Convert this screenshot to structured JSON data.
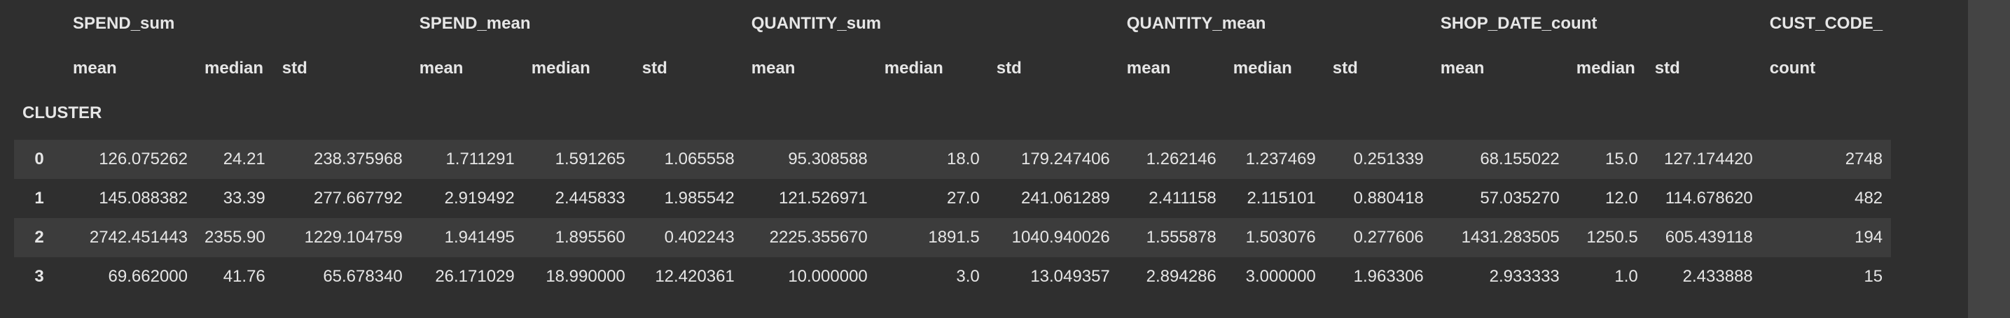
{
  "dataframe": {
    "top_headers": [
      "SPEND_sum",
      "SPEND_mean",
      "QUANTITY_sum",
      "QUANTITY_mean",
      "SHOP_DATE_count",
      "CUST_CODE_"
    ],
    "stat_headers": [
      "mean",
      "median",
      "std",
      "mean",
      "median",
      "std",
      "mean",
      "median",
      "std",
      "mean",
      "median",
      "std",
      "mean",
      "median",
      "std",
      "count"
    ],
    "index_name": "CLUSTER",
    "rows": [
      {
        "index": "0",
        "values": [
          "126.075262",
          "24.21",
          "238.375968",
          "1.711291",
          "1.591265",
          "1.065558",
          "95.308588",
          "18.0",
          "179.247406",
          "1.262146",
          "1.237469",
          "0.251339",
          "68.155022",
          "15.0",
          "127.174420",
          "2748"
        ]
      },
      {
        "index": "1",
        "values": [
          "145.088382",
          "33.39",
          "277.667792",
          "2.919492",
          "2.445833",
          "1.985542",
          "121.526971",
          "27.0",
          "241.061289",
          "2.411158",
          "2.115101",
          "0.880418",
          "57.035270",
          "12.0",
          "114.678620",
          "482"
        ]
      },
      {
        "index": "2",
        "values": [
          "2742.451443",
          "2355.90",
          "1229.104759",
          "1.941495",
          "1.895560",
          "0.402243",
          "2225.355670",
          "1891.5",
          "1040.940026",
          "1.555878",
          "1.503076",
          "0.277606",
          "1431.283505",
          "1250.5",
          "605.439118",
          "194"
        ]
      },
      {
        "index": "3",
        "values": [
          "69.662000",
          "41.76",
          "65.678340",
          "26.171029",
          "18.990000",
          "12.420361",
          "10.000000",
          "3.0",
          "13.049357",
          "2.894286",
          "3.000000",
          "1.963306",
          "2.933333",
          "1.0",
          "2.433888",
          "15"
        ]
      }
    ]
  },
  "colors": {
    "background": "#2f2f2f",
    "stripe": "#3c3c3c",
    "text": "#e6e6e6",
    "scroll_strip": "#444444"
  }
}
